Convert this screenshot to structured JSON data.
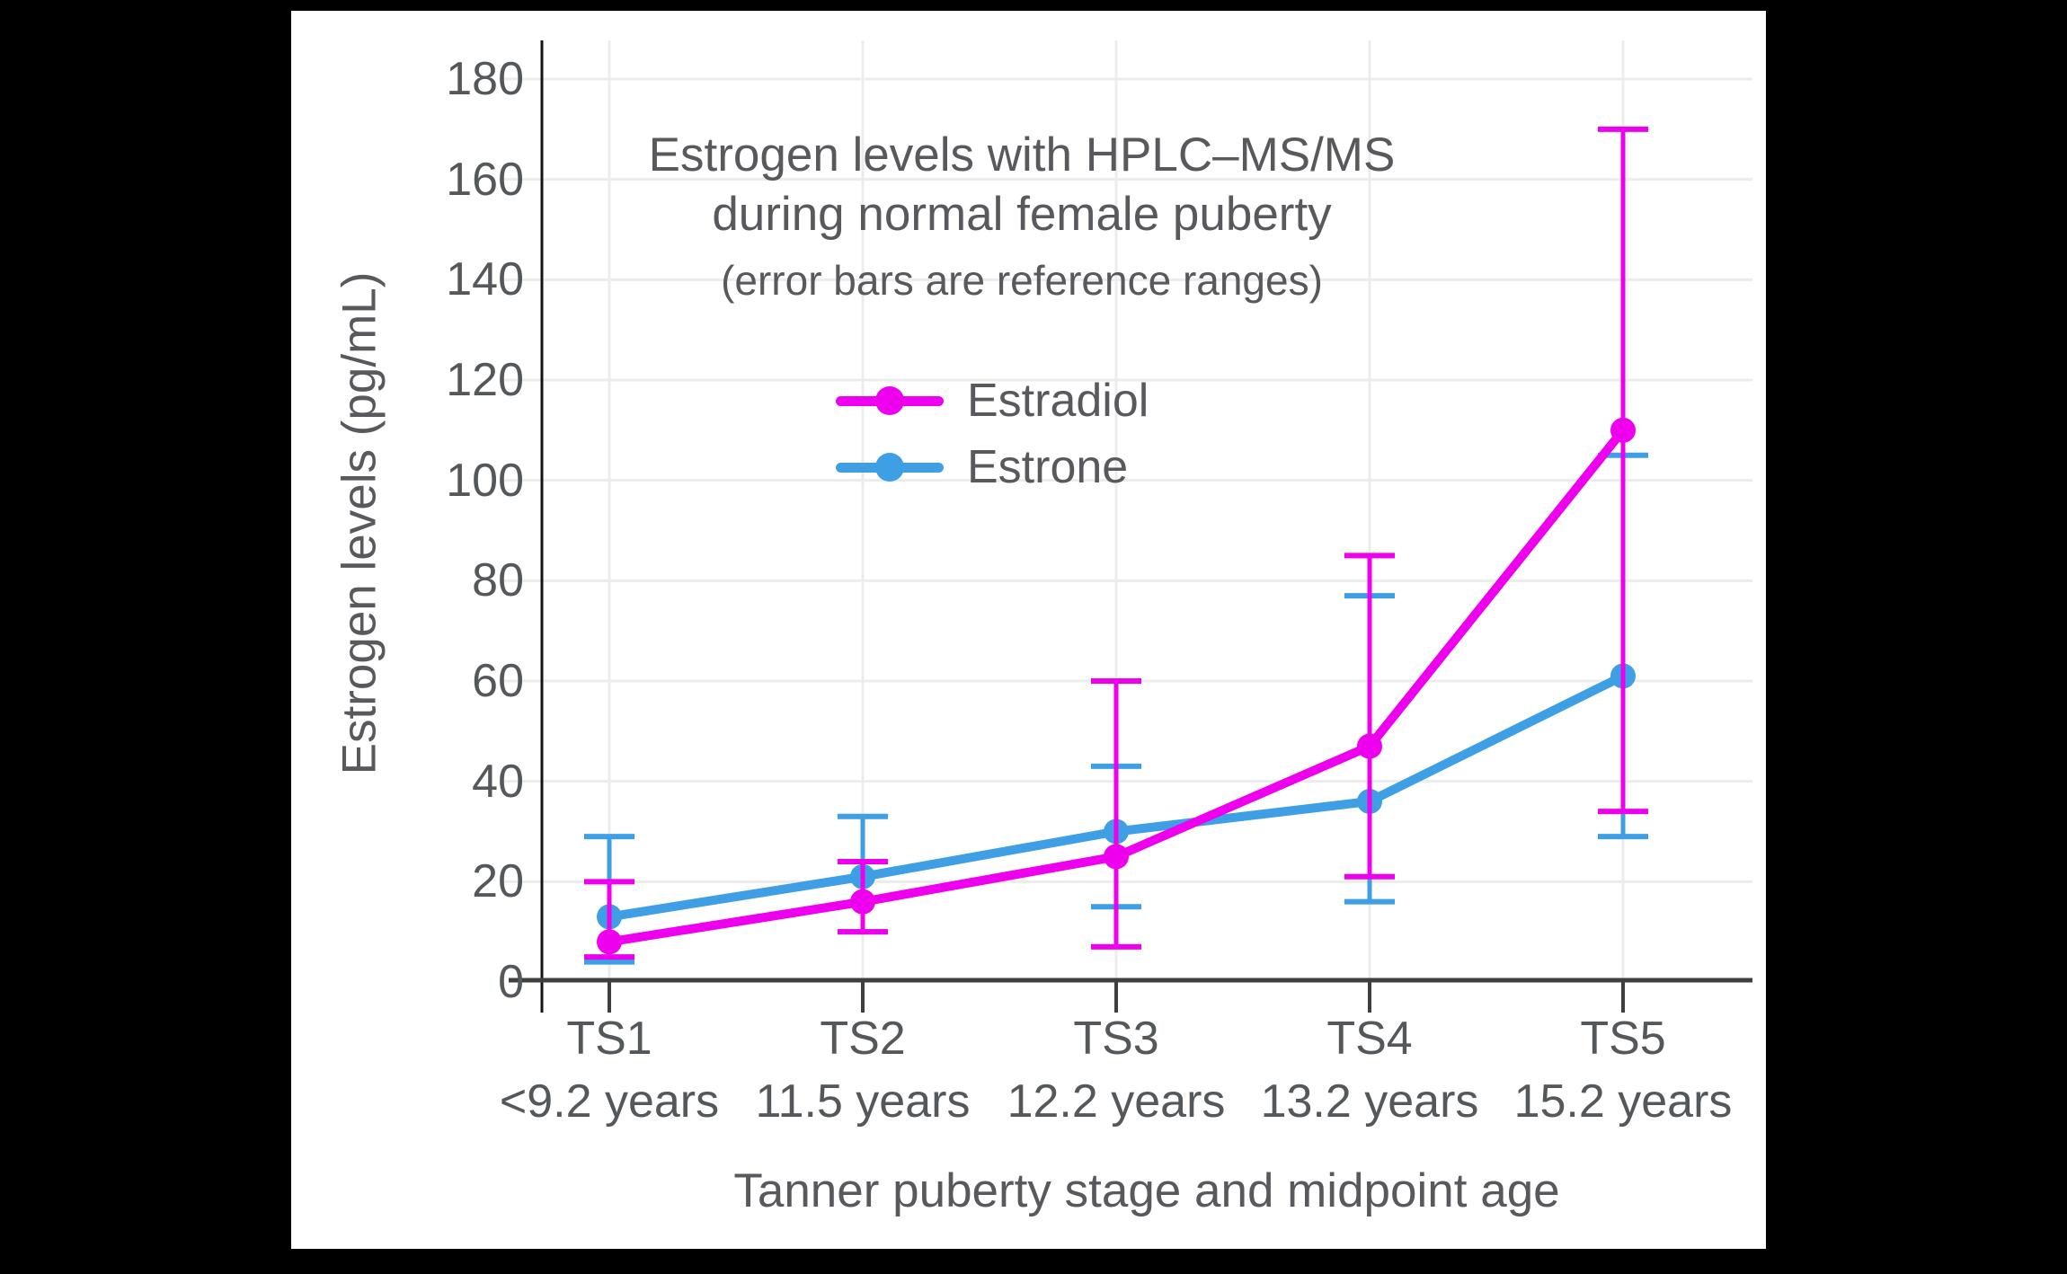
{
  "chart_data": {
    "type": "line",
    "title_line1": "Estrogen levels with HPLC–MS/MS",
    "title_line2": "during normal female puberty",
    "subtitle": "(error bars are reference ranges)",
    "xlabel": "Tanner puberty stage and midpoint age",
    "ylabel": "Estrogen levels (pg/mL)",
    "ylim": [
      0,
      180
    ],
    "ytick_step": 20,
    "yticks": [
      0,
      20,
      40,
      60,
      80,
      100,
      120,
      140,
      160,
      180
    ],
    "grid": true,
    "legend_position": "upper-center",
    "error_bar_meaning": "reference ranges",
    "categories": [
      "TS1",
      "TS2",
      "TS3",
      "TS4",
      "TS5"
    ],
    "category_ages": [
      "<9.2 years",
      "11.5 years",
      "12.2 years",
      "13.2 years",
      "15.2 years"
    ],
    "series": [
      {
        "name": "Estradiol",
        "color": "#EE00EE",
        "values": [
          8,
          16,
          25,
          47,
          110
        ],
        "range_low": [
          5,
          10,
          7,
          21,
          34
        ],
        "range_high": [
          20,
          24,
          60,
          85,
          170
        ]
      },
      {
        "name": "Estrone",
        "color": "#3E9FE4",
        "values": [
          13,
          21,
          30,
          36,
          61
        ],
        "range_low": [
          4,
          10,
          15,
          16,
          29
        ],
        "range_high": [
          29,
          33,
          43,
          77,
          105
        ]
      }
    ],
    "colors": {
      "background": "#000000",
      "plot_background": "#ffffff",
      "gridline": "#ececec",
      "axis_text": "#55585b",
      "x_axis_line": "#3f3f3f",
      "y_axis_line": "#141414"
    }
  }
}
